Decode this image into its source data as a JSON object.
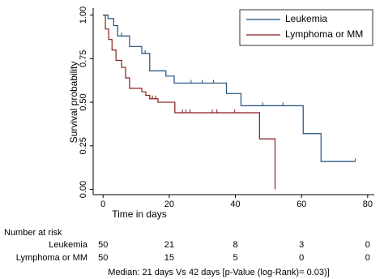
{
  "chart_data": {
    "type": "km",
    "x_label": "Time in days",
    "y_label": "Survival probability",
    "xlim": [
      -3,
      82
    ],
    "ylim": [
      -0.03,
      1.04
    ],
    "xticks": [
      0,
      20,
      40,
      60,
      80
    ],
    "yticks": [
      {
        "value": 0,
        "label": "0.00"
      },
      {
        "value": 0.25,
        "label": "0.25"
      },
      {
        "value": 0.5,
        "label": "0.50"
      },
      {
        "value": 0.75,
        "label": "0.75"
      },
      {
        "value": 1,
        "label": "1.00"
      }
    ],
    "legend": "top-right",
    "series": [
      {
        "name": "Leukemia",
        "color": "#1f4e79",
        "x": [
          0,
          1.5,
          3.2,
          4.4,
          8,
          11.7,
          14.1,
          19,
          21.5,
          37.3,
          41.7,
          60.5,
          65.9,
          76.3
        ],
        "values": [
          1,
          0.98,
          0.94,
          0.88,
          0.82,
          0.78,
          0.68,
          0.65,
          0.61,
          0.55,
          0.48,
          0.32,
          0.16,
          0.16
        ],
        "censored": {
          "x": [
            5.6,
            12.7,
            26.6,
            30,
            33.4,
            48.3,
            54.4,
            76.3
          ],
          "values": [
            0.88,
            0.78,
            0.61,
            0.61,
            0.61,
            0.48,
            0.48,
            0.16
          ]
        }
      },
      {
        "name": "Lymphoma or MM",
        "color": "#8b1a1a",
        "x": [
          0,
          0.7,
          1.7,
          2.7,
          3.9,
          5.6,
          6.8,
          8,
          11.7,
          12.9,
          14.1,
          16.6,
          21.7,
          47.3,
          52
        ],
        "values": [
          1,
          0.92,
          0.86,
          0.8,
          0.74,
          0.7,
          0.64,
          0.58,
          0.56,
          0.54,
          0.52,
          0.5,
          0.44,
          0.29,
          0
        ],
        "censored": {
          "x": [
            14.9,
            15.9,
            24,
            25,
            26.3,
            33,
            34.4,
            39.8
          ],
          "values": [
            0.52,
            0.52,
            0.44,
            0.44,
            0.44,
            0.44,
            0.44,
            0.44
          ]
        }
      }
    ],
    "risk_table": {
      "title": "Number at risk",
      "rows": [
        {
          "name": "Leukemia",
          "values": [
            "50",
            "21",
            "8",
            "3",
            "0"
          ]
        },
        {
          "name": "Lymphoma or MM",
          "values": [
            "50",
            "15",
            "5",
            "0",
            "0"
          ]
        }
      ]
    },
    "note": "Median: 21 days Vs 42 days [p-Value (log-Rank)= 0.03)]"
  }
}
